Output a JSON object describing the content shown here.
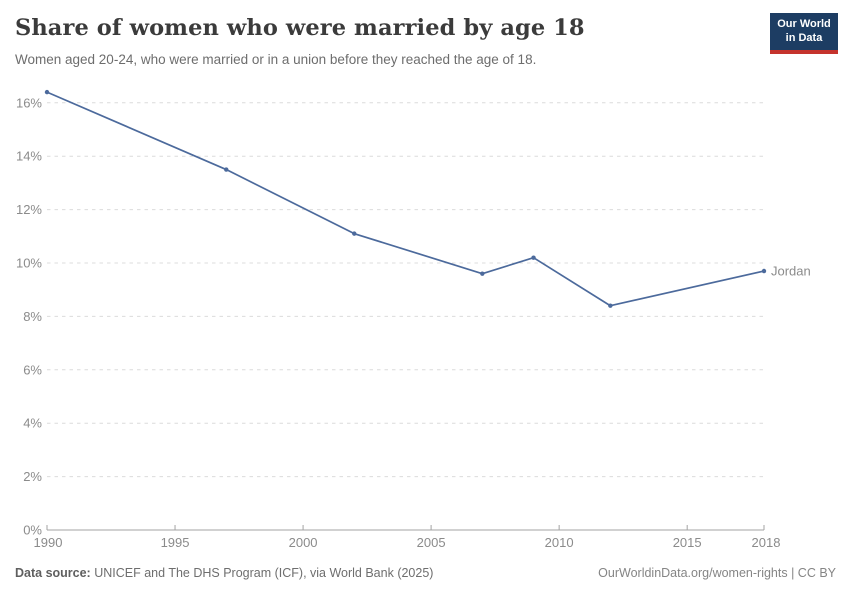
{
  "header": {
    "title": "Share of women who were married by age 18",
    "subtitle": "Women aged 20-24, who were married or in a union before they reached the age of 18.",
    "logo": {
      "line1": "Our World",
      "line2": "in Data"
    }
  },
  "chart_data": {
    "type": "line",
    "title": "Share of women who were married by age 18",
    "series": [
      {
        "name": "Jordan",
        "color": "#4C6A9C",
        "x": [
          1990,
          1997,
          2002,
          2007,
          2009,
          2012,
          2018
        ],
        "values": [
          16.4,
          13.5,
          11.1,
          9.6,
          10.2,
          8.4,
          9.7
        ]
      }
    ],
    "xlabel": "",
    "ylabel": "",
    "xlim": [
      1990,
      2018
    ],
    "ylim": [
      0,
      16.45
    ],
    "x_ticks": [
      1990,
      1995,
      2000,
      2005,
      2010,
      2015,
      2018
    ],
    "y_ticks": [
      0,
      2,
      4,
      6,
      8,
      10,
      12,
      14,
      16
    ],
    "y_tick_suffix": "%",
    "grid": "horizontal-dashed",
    "legend": "line-end-label"
  },
  "footer": {
    "source_label": "Data source:",
    "source_text": "UNICEF and The DHS Program (ICF), via World Bank (2025)",
    "right_text": "OurWorldinData.org/women-rights | CC BY"
  },
  "colors": {
    "line": "#4C6A9C",
    "logo_navy": "#1d3d63",
    "logo_red": "#c5332d",
    "grid": "#dcdcdc",
    "axis": "#a3a3a3",
    "tick_label": "#8b8b8b",
    "title_text": "#3b3b3b",
    "subtitle_text": "#6d6d6d"
  }
}
